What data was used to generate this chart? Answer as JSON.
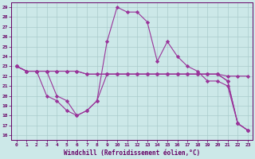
{
  "xlabel": "Windchill (Refroidissement éolien,°C)",
  "background_color": "#cce8e8",
  "grid_color": "#aacccc",
  "line_color": "#993399",
  "xlim": [
    -0.5,
    23.5
  ],
  "ylim": [
    15.5,
    29.5
  ],
  "yticks": [
    16,
    17,
    18,
    19,
    20,
    21,
    22,
    23,
    24,
    25,
    26,
    27,
    28,
    29
  ],
  "xticks": [
    0,
    1,
    2,
    3,
    4,
    5,
    6,
    7,
    8,
    9,
    10,
    11,
    12,
    13,
    14,
    15,
    16,
    17,
    18,
    19,
    20,
    21,
    22,
    23
  ],
  "series": [
    [
      23,
      22.5,
      22.5,
      22.5,
      22.5,
      22.5,
      22.5,
      22.2,
      22.2,
      22.2,
      22.2,
      22.2,
      22.2,
      22.2,
      22.2,
      22.2,
      22.2,
      22.2,
      22.2,
      22.2,
      22.2,
      22.0,
      22.0,
      22.0
    ],
    [
      23,
      22.5,
      22.5,
      22.5,
      22.5,
      22.5,
      22.5,
      22.2,
      22.2,
      22.2,
      22.2,
      22.2,
      22.2,
      22.2,
      22.2,
      22.2,
      22.2,
      22.2,
      22.2,
      22.2,
      22.2,
      21.5,
      17.2,
      16.5
    ],
    [
      23,
      22.5,
      22.5,
      20.0,
      19.5,
      18.5,
      18.0,
      18.5,
      19.5,
      22.2,
      22.2,
      22.2,
      22.2,
      22.2,
      22.2,
      22.2,
      22.2,
      22.2,
      22.2,
      22.2,
      22.2,
      21.5,
      17.2,
      16.5
    ],
    [
      23,
      22.5,
      22.5,
      22.5,
      20.0,
      19.5,
      18.0,
      18.5,
      19.5,
      25.5,
      29.0,
      28.5,
      28.5,
      27.5,
      23.5,
      25.5,
      24.0,
      23.0,
      22.5,
      21.5,
      21.5,
      21.0,
      17.2,
      16.5
    ]
  ]
}
